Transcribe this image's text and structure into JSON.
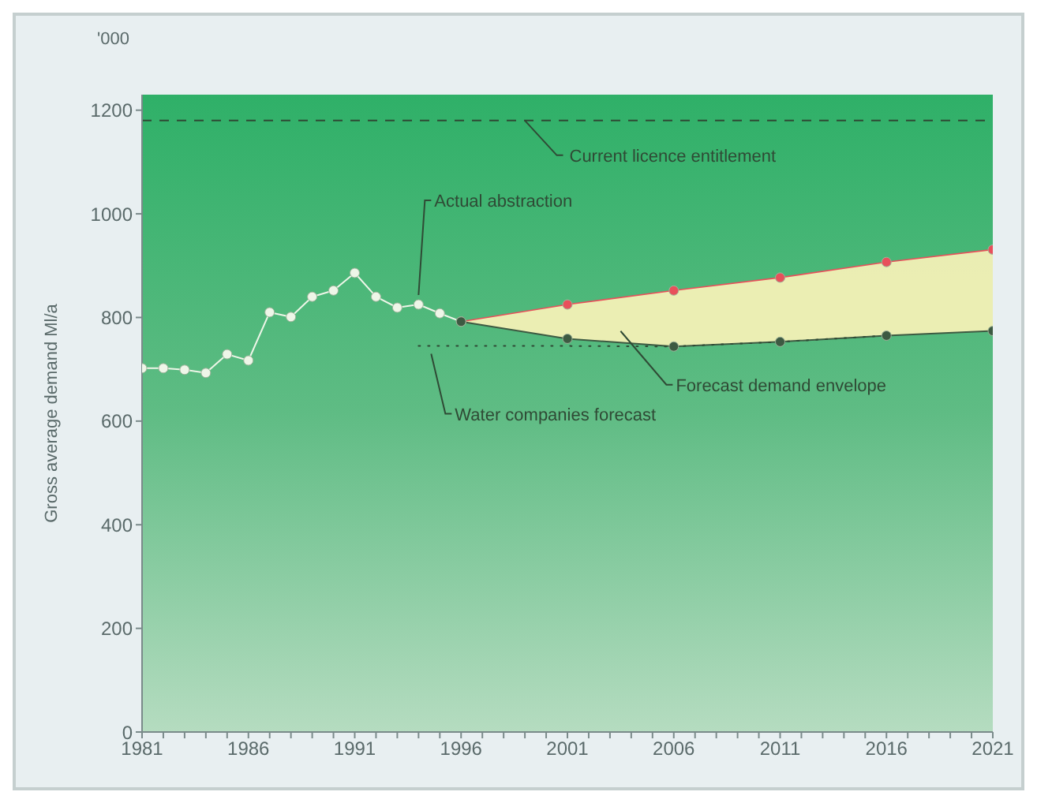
{
  "chart_data": {
    "type": "line",
    "ylabel": "Gross average demand Ml/a",
    "annotations": [
      "'000"
    ],
    "xlim": [
      1981,
      2021
    ],
    "xticks": [
      1981,
      {
        "value": 1982,
        "label": null
      },
      {
        "value": 1983,
        "label": null
      },
      {
        "value": 1984,
        "label": null
      },
      {
        "value": 1985,
        "label": null
      },
      1986,
      {
        "value": 1987,
        "label": null
      },
      {
        "value": 1988,
        "label": null
      },
      {
        "value": 1989,
        "label": null
      },
      {
        "value": 1990,
        "label": null
      },
      1991,
      {
        "value": 1992,
        "label": null
      },
      {
        "value": 1993,
        "label": null
      },
      {
        "value": 1994,
        "label": null
      },
      {
        "value": 1995,
        "label": null
      },
      1996,
      {
        "value": 1997,
        "label": null
      },
      {
        "value": 1998,
        "label": null
      },
      {
        "value": 1999,
        "label": null
      },
      {
        "value": 2000,
        "label": null
      },
      2001,
      {
        "value": 2002,
        "label": null
      },
      {
        "value": 2003,
        "label": null
      },
      {
        "value": 2004,
        "label": null
      },
      {
        "value": 2005,
        "label": null
      },
      2006,
      {
        "value": 2007,
        "label": null
      },
      {
        "value": 2008,
        "label": null
      },
      {
        "value": 2009,
        "label": null
      },
      {
        "value": 2010,
        "label": null
      },
      2011,
      {
        "value": 2012,
        "label": null
      },
      {
        "value": 2013,
        "label": null
      },
      {
        "value": 2014,
        "label": null
      },
      {
        "value": 2015,
        "label": null
      },
      2016,
      {
        "value": 2017,
        "label": null
      },
      {
        "value": 2018,
        "label": null
      },
      {
        "value": 2019,
        "label": null
      },
      {
        "value": 2020,
        "label": null
      },
      2021
    ],
    "ylim": [
      0,
      1230
    ],
    "yticks": [
      0,
      200,
      400,
      600,
      800,
      1000,
      1200
    ],
    "ref_lines": [
      {
        "axis": "y",
        "value": 1180,
        "label": "Current licence entitlement",
        "color": "#2f4a35",
        "line_style": "dashed"
      }
    ],
    "series": [
      {
        "name": "Actual abstraction",
        "color": "#eef6e8",
        "marker": "circle",
        "x": [
          1981,
          1982,
          1983,
          1984,
          1985,
          1986,
          1987,
          1988,
          1989,
          1990,
          1991,
          1992,
          1993,
          1994,
          1995,
          1996
        ],
        "values": [
          702,
          702,
          699,
          693,
          729,
          717,
          810,
          801,
          840,
          852,
          886,
          840,
          819,
          825,
          808,
          792
        ]
      },
      {
        "name": "Forecast demand envelope",
        "color": "#e8505b",
        "marker": "circle",
        "x": [
          1996,
          2001,
          2006,
          2011,
          2016,
          2021
        ],
        "values": [
          792,
          825,
          852,
          877,
          907,
          931
        ],
        "lower": [
          792,
          759,
          744,
          753,
          765,
          774
        ],
        "upper": [
          792,
          825,
          852,
          877,
          907,
          931
        ]
      },
      {
        "color": "#3d5a42",
        "marker": "circle",
        "x": [
          1996,
          2001,
          2006,
          2011,
          2016,
          2021
        ],
        "values": [
          792,
          759,
          744,
          753,
          765,
          774
        ]
      },
      {
        "name": "Water companies forecast",
        "color": "#2f4a35",
        "line_style": "dotted",
        "x": [
          1994,
          2001,
          2006,
          2011,
          2016
        ],
        "values": [
          745,
          745,
          744,
          753,
          765
        ]
      }
    ]
  }
}
